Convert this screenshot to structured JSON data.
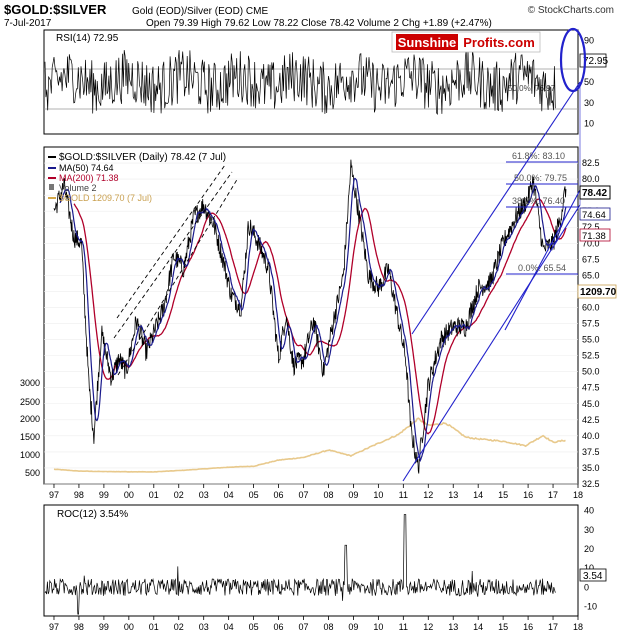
{
  "header": {
    "symbol": "$GOLD:$SILVER",
    "desc": "Gold (EOD)/Silver (EOD) CME",
    "watermark": "© StockCharts.com",
    "date": "7-Jul-2017",
    "ohlc": "Open 79.39  High 79.62  Low 78.22  Close 78.42  Volume 2  Chg +1.89 (+2.47%)",
    "logo_left": "Sunshine",
    "logo_right": "Profits.com"
  },
  "rsi": {
    "label": "RSI(14) 72.95",
    "ticks": [
      "90",
      "70",
      "50",
      "30",
      "10"
    ],
    "current": "72.95",
    "fib_label": "50.0%: 76.97"
  },
  "main": {
    "legend": [
      {
        "text": "$GOLD:$SILVER (Daily) 78.42 (7 Jul)",
        "color": "#000000"
      },
      {
        "text": "MA(50) 74.64",
        "color": "#1a1a8c"
      },
      {
        "text": "MA(200) 71.38",
        "color": "#b0002a"
      },
      {
        "text": "Volume 2",
        "color": "#555555"
      },
      {
        "text": "$GOLD 1209.70 (7 Jul)",
        "color": "#d4a84a"
      }
    ],
    "right_ticks": [
      "82.5",
      "80.0",
      "77.5",
      "75.0",
      "72.5",
      "70.0",
      "67.5",
      "65.0",
      "62.5",
      "60.0",
      "57.5",
      "55.0",
      "52.5",
      "50.0",
      "47.5",
      "45.0",
      "42.5",
      "40.0",
      "37.5",
      "35.0",
      "32.5"
    ],
    "left_ticks": [
      "3000",
      "2500",
      "2000",
      "1500",
      "1000",
      "500"
    ],
    "value_tags": [
      {
        "text": "78.42",
        "bold": true
      },
      {
        "text": "74.64",
        "bold": false
      },
      {
        "text": "71.38",
        "bold": false
      },
      {
        "text": "1209.70",
        "bold": true
      }
    ],
    "fib_labels": [
      "61.8%: 83.10",
      "50.0%: 79.75",
      "38.2%: 76.40",
      "0.0%: 65.54"
    ],
    "years": [
      "97",
      "98",
      "99",
      "00",
      "01",
      "02",
      "03",
      "04",
      "05",
      "06",
      "07",
      "08",
      "09",
      "10",
      "11",
      "12",
      "13",
      "14",
      "15",
      "16",
      "17",
      "18"
    ]
  },
  "roc": {
    "label": "ROC(12) 3.54%",
    "ticks": [
      "40",
      "30",
      "20",
      "10",
      "0",
      "-10"
    ],
    "current": "3.54"
  },
  "colors": {
    "price": "#000000",
    "ma50": "#1a1a8c",
    "ma200": "#b0002a",
    "gold": "#e8c98c",
    "channel": "#2222cc",
    "logo_red": "#cc0000"
  },
  "chart_data": {
    "type": "line",
    "title": "$GOLD:$SILVER Gold (EOD)/Silver (EOD) CME",
    "series": [
      {
        "name": "$GOLD:$SILVER (Daily)",
        "x": [
          1997.0,
          1997.4,
          1997.8,
          1998.1,
          1998.4,
          1998.6,
          1998.9,
          1999.3,
          1999.6,
          1999.9,
          2000.3,
          2000.7,
          2001.0,
          2001.4,
          2001.8,
          2002.2,
          2002.6,
          2003.0,
          2003.4,
          2003.8,
          2004.1,
          2004.5,
          2004.8,
          2005.2,
          2005.6,
          2006.0,
          2006.3,
          2006.6,
          2007.0,
          2007.4,
          2007.8,
          2008.2,
          2008.6,
          2008.9,
          2009.2,
          2009.6,
          2010.0,
          2010.4,
          2010.8,
          2011.1,
          2011.3,
          2011.6,
          2012.0,
          2012.5,
          2013.0,
          2013.5,
          2014.0,
          2014.5,
          2015.0,
          2015.5,
          2016.0,
          2016.2,
          2016.6,
          2017.0,
          2017.3,
          2017.5
        ],
        "values": [
          75,
          79,
          71,
          70,
          48,
          40,
          56,
          49,
          52,
          50,
          58,
          53,
          56,
          60,
          68,
          66,
          74,
          76,
          73,
          67,
          62,
          60,
          73,
          70,
          66,
          52,
          59,
          51,
          52,
          58,
          50,
          58,
          65,
          82,
          75,
          65,
          63,
          66,
          58,
          52,
          41,
          35,
          48,
          55,
          57,
          57,
          63,
          64,
          70,
          74,
          77,
          80,
          69,
          70,
          74,
          78.42
        ]
      },
      {
        "name": "$GOLD",
        "x": [
          1997.0,
          1998.0,
          1999.0,
          2000.0,
          2001.0,
          2002.0,
          2003.0,
          2004.0,
          2005.0,
          2006.0,
          2007.0,
          2008.0,
          2008.9,
          2009.5,
          2010.0,
          2010.8,
          2011.6,
          2012.0,
          2012.7,
          2013.5,
          2014.0,
          2015.0,
          2015.9,
          2016.6,
          2017.0,
          2017.5
        ],
        "values": [
          350,
          295,
          280,
          275,
          270,
          310,
          360,
          410,
          440,
          620,
          700,
          920,
          750,
          950,
          1120,
          1380,
          1850,
          1650,
          1720,
          1300,
          1250,
          1180,
          1050,
          1350,
          1150,
          1209.7
        ]
      }
    ],
    "ylim": [
      32.5,
      85
    ],
    "x_ticks": [
      "97",
      "98",
      "99",
      "00",
      "01",
      "02",
      "03",
      "04",
      "05",
      "06",
      "07",
      "08",
      "09",
      "10",
      "11",
      "12",
      "13",
      "14",
      "15",
      "16",
      "17",
      "18"
    ]
  }
}
